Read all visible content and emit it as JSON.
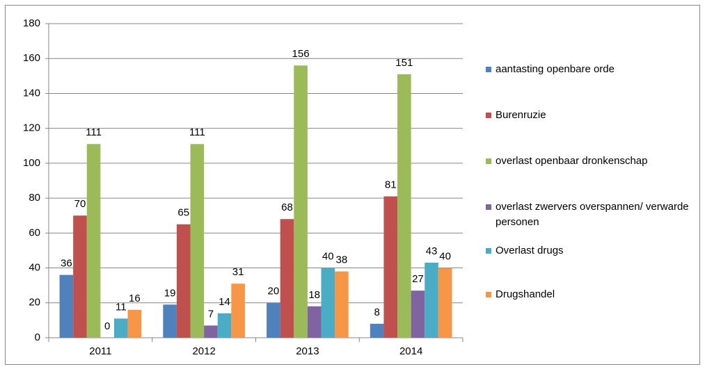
{
  "chart_data": {
    "type": "bar",
    "categories": [
      "2011",
      "2012",
      "2013",
      "2014"
    ],
    "series": [
      {
        "name": "aantasting openbare orde",
        "color": "#4f81bd",
        "values": [
          36,
          19,
          20,
          8
        ]
      },
      {
        "name": "Burenruzie",
        "color": "#c0504d",
        "values": [
          70,
          65,
          68,
          81
        ]
      },
      {
        "name": "overlast openbaar dronkenschap",
        "color": "#9bbb59",
        "values": [
          111,
          111,
          156,
          151
        ]
      },
      {
        "name": "overlast zwervers overspannen/ verwarde personen",
        "color": "#8064a2",
        "values": [
          0,
          7,
          18,
          27
        ]
      },
      {
        "name": "Overlast drugs",
        "color": "#4bacc6",
        "values": [
          11,
          14,
          40,
          43
        ]
      },
      {
        "name": "Drugshandel",
        "color": "#f79646",
        "values": [
          16,
          31,
          38,
          40
        ]
      }
    ],
    "ylim": [
      0,
      180
    ],
    "yticks": [
      0,
      20,
      40,
      60,
      80,
      100,
      120,
      140,
      160,
      180
    ],
    "grid": true,
    "legend": "right"
  }
}
